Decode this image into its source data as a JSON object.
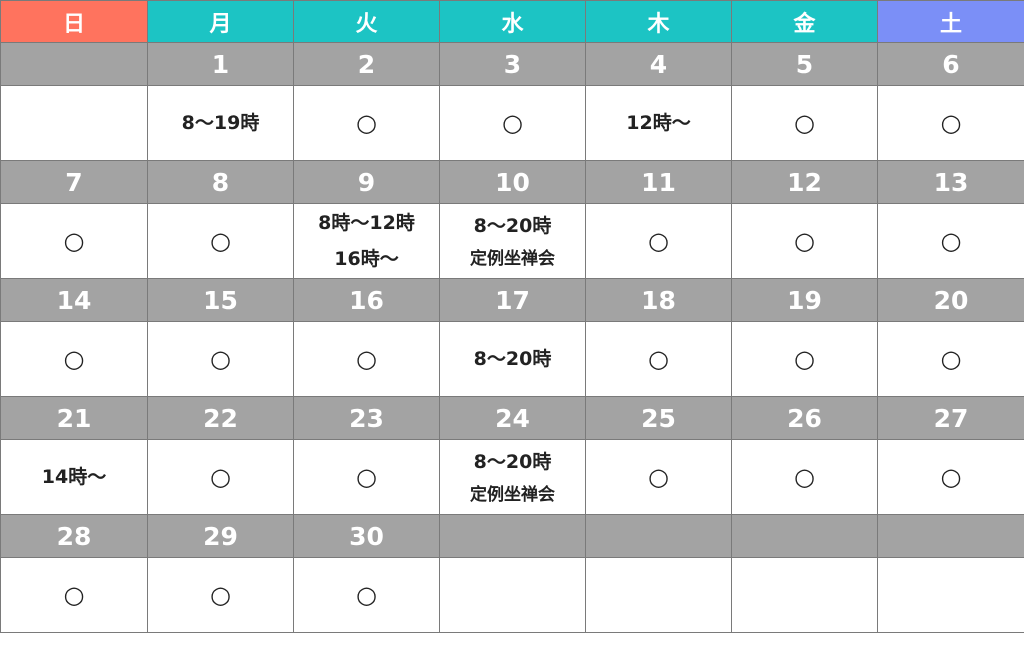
{
  "weekdays": [
    {
      "label": "日",
      "color": "#FF735E"
    },
    {
      "label": "月",
      "color": "#1CC4C4"
    },
    {
      "label": "火",
      "color": "#1CC4C4"
    },
    {
      "label": "水",
      "color": "#1CC4C4"
    },
    {
      "label": "木",
      "color": "#1CC4C4"
    },
    {
      "label": "金",
      "color": "#1CC4C4"
    },
    {
      "label": "土",
      "color": "#7B8FF7"
    }
  ],
  "weeks": [
    {
      "dates": [
        "",
        "1",
        "2",
        "3",
        "4",
        "5",
        "6"
      ],
      "cells": [
        [],
        [
          "8〜19時"
        ],
        [
          "○"
        ],
        [
          "○"
        ],
        [
          "12時〜"
        ],
        [
          "○"
        ],
        [
          "○"
        ]
      ]
    },
    {
      "dates": [
        "7",
        "8",
        "9",
        "10",
        "11",
        "12",
        "13"
      ],
      "cells": [
        [
          "○"
        ],
        [
          "○"
        ],
        [
          "8時〜12時",
          "16時〜"
        ],
        [
          "8〜20時",
          "定例坐禅会"
        ],
        [
          "○"
        ],
        [
          "○"
        ],
        [
          "○"
        ]
      ]
    },
    {
      "dates": [
        "14",
        "15",
        "16",
        "17",
        "18",
        "19",
        "20"
      ],
      "cells": [
        [
          "○"
        ],
        [
          "○"
        ],
        [
          "○"
        ],
        [
          "8〜20時"
        ],
        [
          "○"
        ],
        [
          "○"
        ],
        [
          "○"
        ]
      ]
    },
    {
      "dates": [
        "21",
        "22",
        "23",
        "24",
        "25",
        "26",
        "27"
      ],
      "cells": [
        [
          "14時〜"
        ],
        [
          "○"
        ],
        [
          "○"
        ],
        [
          "8〜20時",
          "定例坐禅会"
        ],
        [
          "○"
        ],
        [
          "○"
        ],
        [
          "○"
        ]
      ]
    },
    {
      "dates": [
        "28",
        "29",
        "30",
        "",
        "",
        "",
        ""
      ],
      "cells": [
        [
          "○"
        ],
        [
          "○"
        ],
        [
          "○"
        ],
        [],
        [],
        [],
        []
      ]
    }
  ]
}
